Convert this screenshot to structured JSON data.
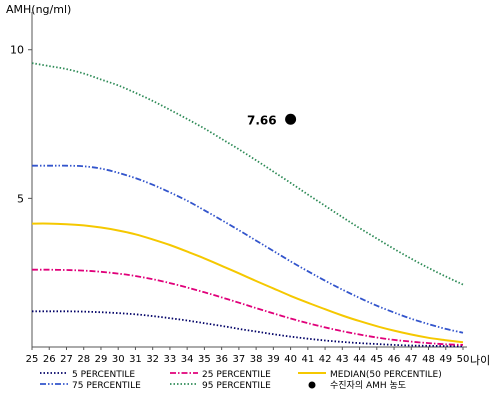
{
  "chart_data": {
    "type": "line",
    "ylabel": "AMH(ng/ml)",
    "xlabel": "나이",
    "x": [
      25,
      26,
      27,
      28,
      29,
      30,
      31,
      32,
      33,
      34,
      35,
      36,
      37,
      38,
      39,
      40,
      41,
      42,
      43,
      44,
      45,
      46,
      47,
      48,
      49,
      50
    ],
    "x_tick_labels": [
      "25",
      "26",
      "27",
      "28",
      "29",
      "30",
      "31",
      "32",
      "33",
      "34",
      "35",
      "36",
      "37",
      "38",
      "39",
      "40",
      "41",
      "42",
      "43",
      "44",
      "45",
      "46",
      "47",
      "48",
      "49",
      "50"
    ],
    "y_ticks": [
      5,
      10
    ],
    "y_tick_labels": [
      "5",
      "10"
    ],
    "xlim": [
      25,
      50
    ],
    "ylim": [
      0,
      11
    ],
    "grid": false,
    "legend_position": "bottom",
    "series": [
      {
        "name": "5 PERCENTILE",
        "color": "#000066",
        "style": "dotted",
        "values": [
          1.2,
          1.2,
          1.2,
          1.19,
          1.17,
          1.14,
          1.1,
          1.04,
          0.97,
          0.89,
          0.8,
          0.71,
          0.61,
          0.52,
          0.43,
          0.35,
          0.28,
          0.22,
          0.17,
          0.13,
          0.1,
          0.07,
          0.05,
          0.04,
          0.03,
          0.02
        ]
      },
      {
        "name": "25 PERCENTILE",
        "color": "#e0007a",
        "style": "dashdot",
        "values": [
          2.6,
          2.6,
          2.59,
          2.57,
          2.53,
          2.47,
          2.39,
          2.28,
          2.15,
          2.0,
          1.84,
          1.67,
          1.49,
          1.31,
          1.13,
          0.96,
          0.8,
          0.66,
          0.53,
          0.42,
          0.32,
          0.24,
          0.18,
          0.13,
          0.09,
          0.07
        ]
      },
      {
        "name": "MEDIAN(50 PERCENTILE)",
        "color": "#f5c800",
        "style": "solid",
        "values": [
          4.15,
          4.15,
          4.13,
          4.09,
          4.02,
          3.92,
          3.79,
          3.62,
          3.43,
          3.21,
          2.98,
          2.73,
          2.48,
          2.22,
          1.97,
          1.72,
          1.49,
          1.27,
          1.06,
          0.87,
          0.7,
          0.55,
          0.42,
          0.31,
          0.23,
          0.16
        ]
      },
      {
        "name": "75 PERCENTILE",
        "color": "#3355cc",
        "style": "dashdotdot",
        "values": [
          6.1,
          6.1,
          6.1,
          6.08,
          6.0,
          5.86,
          5.68,
          5.46,
          5.2,
          4.92,
          4.6,
          4.27,
          3.93,
          3.58,
          3.23,
          2.88,
          2.55,
          2.23,
          1.93,
          1.65,
          1.39,
          1.16,
          0.95,
          0.77,
          0.61,
          0.48
        ]
      },
      {
        "name": "95 PERCENTILE",
        "color": "#2e8b57",
        "style": "dotted",
        "values": [
          9.55,
          9.45,
          9.35,
          9.2,
          9.0,
          8.8,
          8.55,
          8.28,
          7.98,
          7.67,
          7.35,
          7.0,
          6.65,
          6.28,
          5.9,
          5.52,
          5.13,
          4.75,
          4.37,
          4.0,
          3.65,
          3.3,
          2.97,
          2.66,
          2.37,
          2.1
        ]
      }
    ],
    "patient": {
      "label": "수진자의 AMH 농도",
      "x": 40,
      "y": 7.66,
      "value_label": "7.66",
      "color": "#000000"
    }
  }
}
